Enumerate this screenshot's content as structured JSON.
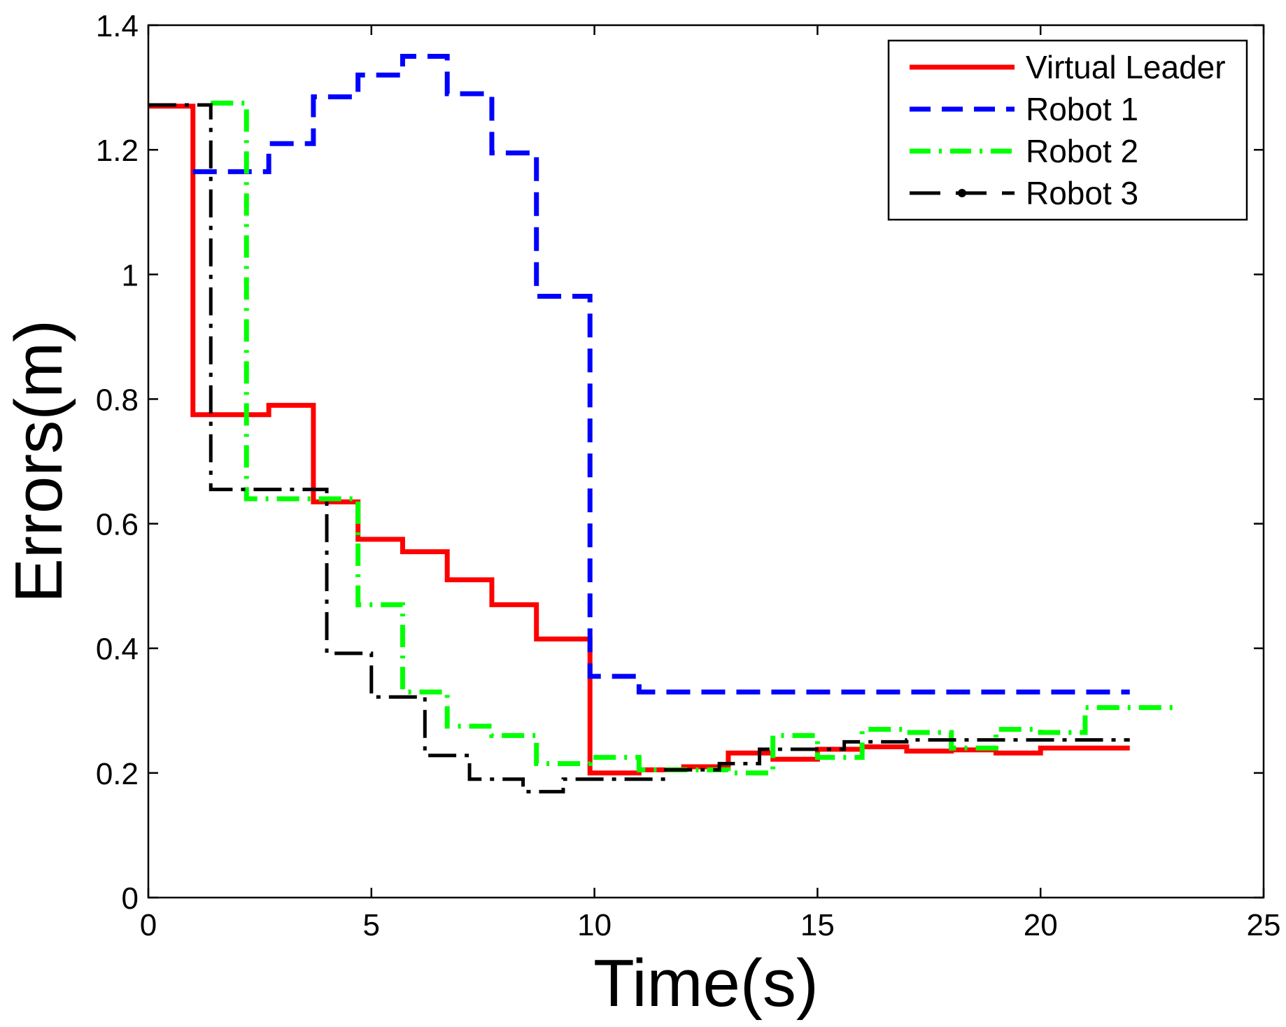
{
  "chart_data": {
    "type": "line",
    "step": true,
    "title": "",
    "xlabel": "Time(s)",
    "ylabel": "Errors(m)",
    "xlim": [
      0,
      25
    ],
    "ylim": [
      0,
      1.4
    ],
    "xticks": [
      0,
      5,
      10,
      15,
      20,
      25
    ],
    "yticks": [
      0,
      0.2,
      0.4,
      0.6,
      0.8,
      1,
      1.2,
      1.4
    ],
    "xtick_labels": [
      "0",
      "5",
      "10",
      "15",
      "20",
      "25"
    ],
    "ytick_labels": [
      "0",
      "0.2",
      "0.4",
      "0.6",
      "0.8",
      "1",
      "1.2",
      "1.4"
    ],
    "grid": false,
    "legend_position": "top-right",
    "series": [
      {
        "name": "Virtual Leader",
        "color": "#ff0000",
        "style": "solid",
        "x": [
          0,
          1.0,
          2.7,
          3.7,
          4.7,
          5.7,
          6.7,
          7.7,
          8.7,
          9.9,
          11.0,
          12.0,
          13.0,
          14.0,
          15.0,
          16.0,
          17.0,
          18.0,
          19.0,
          20.0,
          22.0
        ],
        "y": [
          1.27,
          0.775,
          0.79,
          0.635,
          0.575,
          0.555,
          0.51,
          0.47,
          0.415,
          0.2,
          0.205,
          0.21,
          0.232,
          0.222,
          0.238,
          0.242,
          0.235,
          0.237,
          0.232,
          0.24,
          0.24
        ]
      },
      {
        "name": "Robot 1",
        "color": "#0000ff",
        "style": "dashed",
        "x": [
          1.0,
          2.7,
          3.7,
          4.7,
          5.7,
          6.7,
          7.7,
          8.7,
          9.9,
          11.0,
          22.0
        ],
        "y": [
          1.165,
          1.21,
          1.285,
          1.32,
          1.35,
          1.29,
          1.195,
          0.965,
          0.355,
          0.33,
          0.33
        ]
      },
      {
        "name": "Robot 2",
        "color": "#00ff00",
        "style": "dashdot",
        "x": [
          1.4,
          2.2,
          4.7,
          5.7,
          6.7,
          7.7,
          8.7,
          9.9,
          11.0,
          12.0,
          13.0,
          14.0,
          15.0,
          16.0,
          17.0,
          18.0,
          19.0,
          20.0,
          21.0,
          23.0
        ],
        "y": [
          1.275,
          0.64,
          0.47,
          0.33,
          0.275,
          0.26,
          0.215,
          0.225,
          0.205,
          0.205,
          0.2,
          0.26,
          0.225,
          0.27,
          0.265,
          0.24,
          0.27,
          0.265,
          0.305,
          0.305
        ]
      },
      {
        "name": "Robot 3",
        "color": "#000000",
        "style": "dashdotmarker",
        "x": [
          0,
          1.4,
          4.0,
          5.0,
          6.2,
          7.2,
          8.4,
          9.3,
          11.6,
          12.8,
          13.7,
          15.6,
          17.0,
          22.0
        ],
        "y": [
          1.272,
          0.655,
          0.392,
          0.322,
          0.228,
          0.19,
          0.17,
          0.19,
          0.205,
          0.215,
          0.238,
          0.25,
          0.253,
          0.253
        ]
      }
    ]
  }
}
